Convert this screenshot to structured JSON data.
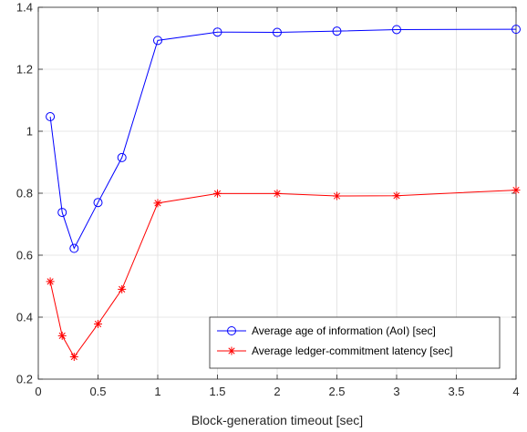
{
  "chart_data": {
    "type": "line",
    "title": "",
    "xlabel": "Block-generation timeout [sec]",
    "ylabel": "",
    "xlim": [
      0,
      4
    ],
    "ylim": [
      0.2,
      1.4
    ],
    "xticks": [
      0,
      0.5,
      1,
      1.5,
      2,
      2.5,
      3,
      3.5,
      4
    ],
    "xtick_labels": [
      "0",
      "0.5",
      "1",
      "1.5",
      "2",
      "2.5",
      "3",
      "3.5",
      "4"
    ],
    "yticks": [
      0.2,
      0.4,
      0.6,
      0.8,
      1.0,
      1.2,
      1.4
    ],
    "ytick_labels": [
      "0.2",
      "0.4",
      "0.6",
      "0.8",
      "1",
      "1.2",
      "1.4"
    ],
    "grid": true,
    "legend_position": "bottom-right",
    "x": [
      0.1,
      0.2,
      0.3,
      0.5,
      0.7,
      1.0,
      1.5,
      2.0,
      2.5,
      3.0,
      4.0
    ],
    "series": [
      {
        "name": "Average age of information (AoI) [sec]",
        "color": "#0000ff",
        "marker": "circle",
        "values": [
          1.047,
          0.738,
          0.622,
          0.77,
          0.915,
          1.293,
          1.32,
          1.319,
          1.323,
          1.328,
          1.329
        ]
      },
      {
        "name": "Average ledger-commitment latency [sec]",
        "color": "#ff0000",
        "marker": "star",
        "values": [
          0.515,
          0.34,
          0.272,
          0.378,
          0.49,
          0.768,
          0.799,
          0.799,
          0.791,
          0.792,
          0.81
        ]
      }
    ]
  }
}
